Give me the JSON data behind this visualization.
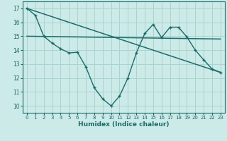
{
  "xlabel": "Humidex (Indice chaleur)",
  "bg_color": "#cceae7",
  "grid_color": "#aad4d0",
  "line_color": "#1a6b6b",
  "x_ticks": [
    0,
    1,
    2,
    3,
    4,
    5,
    6,
    7,
    8,
    9,
    10,
    11,
    12,
    13,
    14,
    15,
    16,
    17,
    18,
    19,
    20,
    21,
    22,
    23
  ],
  "y_ticks": [
    10,
    11,
    12,
    13,
    14,
    15,
    16,
    17
  ],
  "ylim": [
    9.5,
    17.5
  ],
  "xlim": [
    -0.5,
    23.5
  ],
  "series1_x": [
    0,
    1,
    2,
    3,
    4,
    5,
    6,
    7,
    8,
    9,
    10,
    11,
    12,
    13,
    14,
    15,
    16,
    17,
    18,
    19,
    20,
    21,
    22,
    23
  ],
  "series1_y": [
    17.0,
    16.5,
    15.0,
    14.5,
    14.1,
    13.8,
    13.85,
    12.8,
    11.3,
    10.5,
    10.0,
    10.7,
    12.0,
    13.8,
    15.2,
    15.85,
    14.9,
    15.65,
    15.65,
    14.95,
    14.0,
    13.3,
    12.65,
    12.4
  ],
  "series2_x": [
    0,
    23
  ],
  "series2_y": [
    17.0,
    12.4
  ],
  "series3_x": [
    0,
    23
  ],
  "series3_y": [
    15.0,
    14.8
  ]
}
